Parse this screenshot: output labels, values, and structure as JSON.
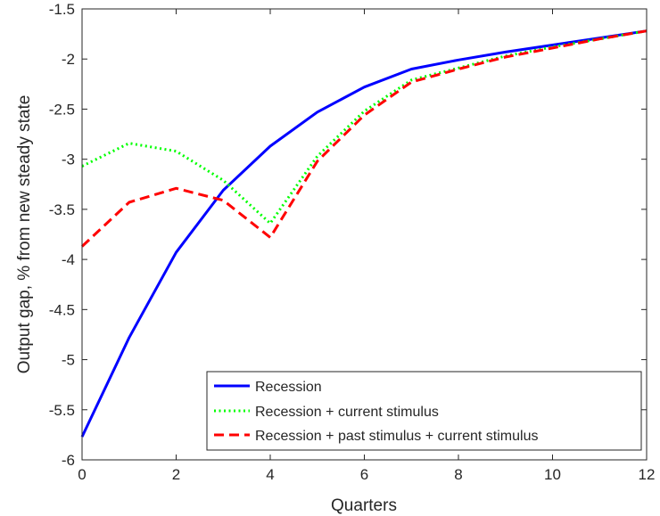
{
  "chart_data": {
    "type": "line",
    "title": "",
    "xlabel": "Quarters",
    "ylabel": "Output gap, % from new steady state",
    "xlim": [
      0,
      12
    ],
    "ylim": [
      -6,
      -1.5
    ],
    "xticks": [
      0,
      2,
      4,
      6,
      8,
      10,
      12
    ],
    "yticks": [
      -6,
      -5.5,
      -5,
      -4.5,
      -4,
      -3.5,
      -3,
      -2.5,
      -2,
      -1.5
    ],
    "xtick_labels": [
      "0",
      "2",
      "4",
      "6",
      "8",
      "10",
      "12"
    ],
    "ytick_labels": [
      "-6",
      "-5.5",
      "-5",
      "-4.5",
      "-4",
      "-3.5",
      "-3",
      "-2.5",
      "-2",
      "-1.5"
    ],
    "grid": false,
    "legend_position": "bottom-right",
    "x": [
      0,
      1,
      2,
      3,
      4,
      5,
      6,
      7,
      8,
      9,
      10,
      11,
      12
    ],
    "series": [
      {
        "name": "Recession",
        "color": "#0000ff",
        "style": "solid",
        "values": [
          -5.77,
          -4.78,
          -3.93,
          -3.31,
          -2.87,
          -2.53,
          -2.28,
          -2.1,
          -2.01,
          -1.93,
          -1.86,
          -1.79,
          -1.72
        ]
      },
      {
        "name": "Recession + current stimulus",
        "color": "#00ff00",
        "style": "dotted",
        "values": [
          -3.07,
          -2.84,
          -2.92,
          -3.21,
          -3.64,
          -2.97,
          -2.52,
          -2.21,
          -2.09,
          -1.97,
          -1.88,
          -1.8,
          -1.72
        ]
      },
      {
        "name": "Recession + past stimulus + current stimulus",
        "color": "#ff0000",
        "style": "dashed",
        "values": [
          -3.87,
          -3.43,
          -3.29,
          -3.41,
          -3.78,
          -3.02,
          -2.56,
          -2.23,
          -2.1,
          -1.98,
          -1.89,
          -1.8,
          -1.72
        ]
      }
    ]
  }
}
